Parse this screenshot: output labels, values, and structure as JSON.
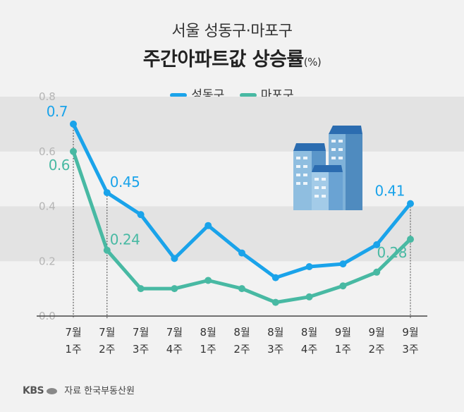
{
  "title_line1": "서울 성동구·마포구",
  "title_line2": "주간아파트값 상승률",
  "title_unit": "(%)",
  "source_logo": "KBS",
  "source_text": "자료 한국부동산원",
  "colors": {
    "seongdong": "#1aa3ea",
    "mapo": "#48b9a3"
  },
  "chart_data": {
    "type": "line",
    "title": "서울 성동구·마포구 주간아파트값 상승률(%)",
    "categories": [
      "7월 1주",
      "7월 2주",
      "7월 3주",
      "7월 4주",
      "8월 1주",
      "8월 2주",
      "8월 3주",
      "8월 4주",
      "9월 1주",
      "9월 2주",
      "9월 3주"
    ],
    "x_ticks": [
      [
        "7월",
        "1주"
      ],
      [
        "7월",
        "2주"
      ],
      [
        "7월",
        "3주"
      ],
      [
        "7월",
        "4주"
      ],
      [
        "8월",
        "1주"
      ],
      [
        "8월",
        "2주"
      ],
      [
        "8월",
        "3주"
      ],
      [
        "8월",
        "4주"
      ],
      [
        "9월",
        "1주"
      ],
      [
        "9월",
        "2주"
      ],
      [
        "9월",
        "3주"
      ]
    ],
    "y_ticks": [
      "0.0",
      "0.2",
      "0.4",
      "0.6",
      "0.8"
    ],
    "ylim": [
      0,
      0.8
    ],
    "series": [
      {
        "name": "성동구",
        "values": [
          0.7,
          0.45,
          0.37,
          0.21,
          0.33,
          0.23,
          0.14,
          0.18,
          0.19,
          0.26,
          0.41
        ]
      },
      {
        "name": "마포구",
        "values": [
          0.6,
          0.24,
          0.1,
          0.1,
          0.13,
          0.1,
          0.05,
          0.07,
          0.11,
          0.16,
          0.28
        ]
      }
    ],
    "data_labels": [
      {
        "series": 0,
        "index": 0,
        "text": "0.7",
        "pos": "above-left"
      },
      {
        "series": 0,
        "index": 1,
        "text": "0.45",
        "pos": "above-right"
      },
      {
        "series": 0,
        "index": 10,
        "text": "0.41",
        "pos": "above-left"
      },
      {
        "series": 1,
        "index": 0,
        "text": "0.6",
        "pos": "below-left"
      },
      {
        "series": 1,
        "index": 1,
        "text": "0.24",
        "pos": "above-right"
      },
      {
        "series": 1,
        "index": 10,
        "text": "0.28",
        "pos": "below-left"
      }
    ],
    "reference_lines_at": [
      0,
      1,
      10
    ],
    "legend": [
      "성동구",
      "마포구"
    ],
    "legend_position": "top-center",
    "grid": "alternating-bands"
  }
}
